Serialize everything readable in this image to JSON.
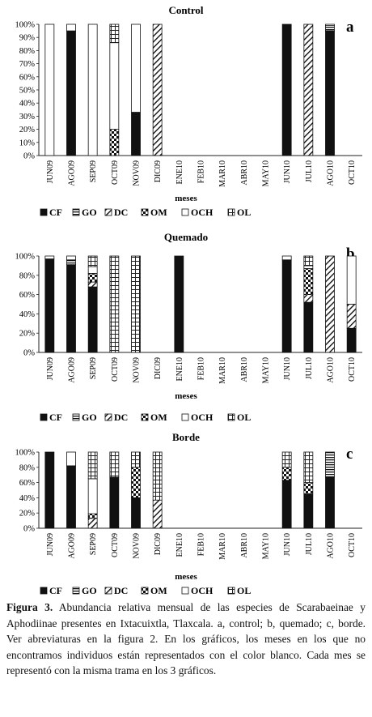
{
  "chart_data": [
    {
      "type": "bar",
      "stacked": true,
      "title": "Control",
      "panel_letter": "a",
      "xlabel": "meses",
      "ylabel": "",
      "ylim": [
        0,
        100
      ],
      "yticks": [
        "0%",
        "10%",
        "20%",
        "30%",
        "40%",
        "50%",
        "60%",
        "70%",
        "80%",
        "90%",
        "100%"
      ],
      "categories": [
        "JUN09",
        "AGO09",
        "SEP09",
        "OCT09",
        "NOV09",
        "DIC09",
        "ENE10",
        "FEB10",
        "MAR10",
        "ABR10",
        "MAY10",
        "JUN10",
        "JUL10",
        "AGO10",
        "OCT10"
      ],
      "legend": [
        "CF",
        "GO",
        "DC",
        "OM",
        "OCH",
        "OL"
      ],
      "series": [
        {
          "name": "CF",
          "values": [
            0,
            95,
            0,
            0,
            33,
            0,
            0,
            0,
            0,
            0,
            0,
            100,
            0,
            95,
            0
          ]
        },
        {
          "name": "GO",
          "values": [
            0,
            0,
            0,
            0,
            0,
            0,
            0,
            0,
            0,
            0,
            0,
            0,
            0,
            4,
            0
          ]
        },
        {
          "name": "DC",
          "values": [
            0,
            0,
            0,
            0,
            0,
            100,
            0,
            0,
            0,
            0,
            0,
            0,
            100,
            0,
            0
          ]
        },
        {
          "name": "OM",
          "values": [
            0,
            0,
            0,
            20,
            0,
            0,
            0,
            0,
            0,
            0,
            0,
            0,
            0,
            0,
            0
          ]
        },
        {
          "name": "OCH",
          "values": [
            100,
            5,
            100,
            66,
            67,
            0,
            0,
            0,
            0,
            0,
            0,
            0,
            0,
            1,
            0
          ]
        },
        {
          "name": "OL",
          "values": [
            0,
            0,
            0,
            14,
            0,
            0,
            0,
            0,
            0,
            0,
            0,
            0,
            0,
            0,
            0
          ]
        }
      ]
    },
    {
      "type": "bar",
      "stacked": true,
      "title": "Quemado",
      "panel_letter": "b",
      "xlabel": "meses",
      "ylabel": "",
      "ylim": [
        0,
        100
      ],
      "yticks": [
        "0%",
        "20%",
        "40%",
        "60%",
        "80%",
        "100%"
      ],
      "categories": [
        "JUN09",
        "AGO09",
        "SEP09",
        "OCT09",
        "NOV09",
        "DIC09",
        "ENE10",
        "FEB10",
        "MAR10",
        "ABR10",
        "MAY10",
        "JUN10",
        "JUL10",
        "AGO10",
        "OCT10"
      ],
      "legend": [
        "CF",
        "GO",
        "DC",
        "OM",
        "OCH",
        "OL"
      ],
      "series": [
        {
          "name": "CF",
          "values": [
            97,
            91,
            68,
            0,
            0,
            0,
            100,
            0,
            0,
            0,
            0,
            96,
            52,
            0,
            25
          ]
        },
        {
          "name": "GO",
          "values": [
            0,
            5,
            0,
            0,
            0,
            0,
            0,
            0,
            0,
            0,
            0,
            0,
            0,
            0,
            0
          ]
        },
        {
          "name": "DC",
          "values": [
            0,
            0,
            5,
            0,
            0,
            0,
            0,
            0,
            0,
            0,
            0,
            0,
            8,
            100,
            25
          ]
        },
        {
          "name": "OM",
          "values": [
            0,
            0,
            9,
            0,
            0,
            0,
            0,
            0,
            0,
            0,
            0,
            0,
            27,
            0,
            0
          ]
        },
        {
          "name": "OCH",
          "values": [
            3,
            4,
            7,
            0,
            0,
            0,
            0,
            0,
            0,
            0,
            0,
            4,
            3,
            0,
            50
          ]
        },
        {
          "name": "OL",
          "values": [
            0,
            0,
            11,
            100,
            100,
            0,
            0,
            0,
            0,
            0,
            0,
            0,
            10,
            0,
            0
          ]
        }
      ]
    },
    {
      "type": "bar",
      "stacked": true,
      "title": "Borde",
      "panel_letter": "c",
      "xlabel": "meses",
      "ylabel": "",
      "ylim": [
        0,
        100
      ],
      "yticks": [
        "0%",
        "20%",
        "40%",
        "60%",
        "80%",
        "100%"
      ],
      "categories": [
        "JUN09",
        "AGO09",
        "SEP09",
        "OCT09",
        "NOV09",
        "DIC09",
        "ENE10",
        "FEB10",
        "MAR10",
        "ABR10",
        "MAY10",
        "JUN10",
        "JUL10",
        "AGO10",
        "OCT10"
      ],
      "legend": [
        "CF",
        "GO",
        "DC",
        "OM",
        "OCH",
        "OL"
      ],
      "series": [
        {
          "name": "CF",
          "values": [
            100,
            82,
            0,
            67,
            40,
            0,
            0,
            0,
            0,
            0,
            0,
            63,
            45,
            67,
            0
          ]
        },
        {
          "name": "GO",
          "values": [
            0,
            0,
            0,
            0,
            0,
            0,
            0,
            0,
            0,
            0,
            0,
            0,
            0,
            33,
            0
          ]
        },
        {
          "name": "DC",
          "values": [
            0,
            0,
            13,
            0,
            0,
            37,
            0,
            0,
            0,
            0,
            0,
            0,
            0,
            0,
            0
          ]
        },
        {
          "name": "OM",
          "values": [
            0,
            0,
            6,
            0,
            40,
            0,
            0,
            0,
            0,
            0,
            0,
            17,
            15,
            0,
            0
          ]
        },
        {
          "name": "OCH",
          "values": [
            0,
            18,
            46,
            0,
            0,
            0,
            0,
            0,
            0,
            0,
            0,
            0,
            0,
            0,
            0
          ]
        },
        {
          "name": "OL",
          "values": [
            0,
            0,
            35,
            33,
            20,
            63,
            0,
            0,
            0,
            0,
            0,
            20,
            40,
            0,
            0
          ]
        }
      ]
    }
  ],
  "caption": {
    "label": "Figura 3.",
    "text": "Abundancia relativa mensual de las especies de Scarabaeinae y Aphodiinae presentes en Ixtacuixtla, Tlaxcala. a, control; b, quemado; c, borde. Ver abreviaturas en la figura 2. En los gráficos, los meses en los que no encontramos individuos están representados con el color blanco. Cada mes se representó con la misma trama en los 3 gráficos."
  }
}
